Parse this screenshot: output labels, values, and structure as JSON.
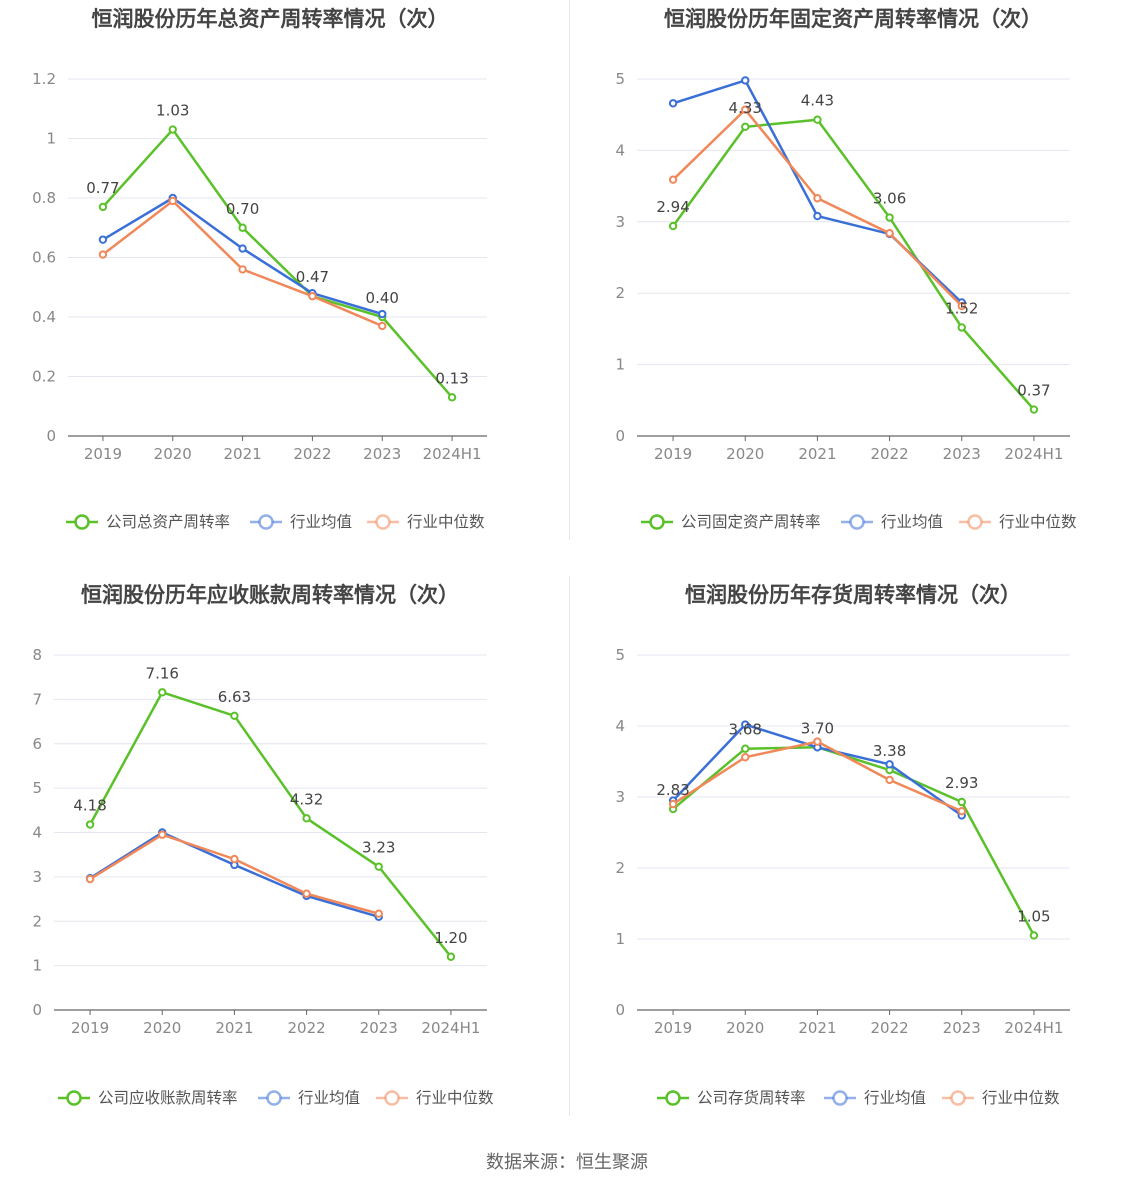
{
  "source_text": "数据来源：恒生聚源",
  "colors": {
    "company": "#5ac12a",
    "average": "#3a6fd8",
    "median": "#f0885a",
    "grid": "#e4e6f0",
    "axis": "#666666"
  },
  "chart_data": [
    {
      "type": "line",
      "title": "恒润股份历年总资产周转率情况（次）",
      "categories": [
        "2019",
        "2020",
        "2021",
        "2022",
        "2023",
        "2024H1"
      ],
      "ylim": [
        0,
        1.2
      ],
      "yticks": [
        0,
        0.2,
        0.4,
        0.6,
        0.8,
        1,
        1.2
      ],
      "ytick_labels": [
        "0",
        "0.2",
        "0.4",
        "0.6",
        "0.8",
        "1",
        "1.2"
      ],
      "grid": true,
      "legend": "bottom",
      "series": [
        {
          "name": "公司总资产周转率",
          "values": [
            0.77,
            1.03,
            0.7,
            0.47,
            0.4,
            0.13
          ],
          "data_labels": [
            "0.77",
            "1.03",
            "0.70",
            "0.47",
            "0.40",
            "0.13"
          ]
        },
        {
          "name": "行业均值",
          "values": [
            0.66,
            0.8,
            0.63,
            0.48,
            0.41,
            null
          ]
        },
        {
          "name": "行业中位数",
          "values": [
            0.61,
            0.79,
            0.56,
            0.47,
            0.37,
            null
          ]
        }
      ]
    },
    {
      "type": "line",
      "title": "恒润股份历年固定资产周转率情况（次）",
      "categories": [
        "2019",
        "2020",
        "2021",
        "2022",
        "2023",
        "2024H1"
      ],
      "ylim": [
        0,
        5
      ],
      "yticks": [
        0,
        1,
        2,
        3,
        4,
        5
      ],
      "ytick_labels": [
        "0",
        "1",
        "2",
        "3",
        "4",
        "5"
      ],
      "grid": true,
      "legend": "bottom",
      "series": [
        {
          "name": "公司固定资产周转率",
          "values": [
            2.94,
            4.33,
            4.43,
            3.06,
            1.52,
            0.37
          ],
          "data_labels": [
            "2.94",
            "4.33",
            "4.43",
            "3.06",
            "1.52",
            "0.37"
          ]
        },
        {
          "name": "行业均值",
          "values": [
            4.66,
            4.98,
            3.08,
            2.83,
            1.87,
            null
          ]
        },
        {
          "name": "行业中位数",
          "values": [
            3.59,
            4.57,
            3.33,
            2.84,
            1.82,
            null
          ]
        }
      ]
    },
    {
      "type": "line",
      "title": "恒润股份历年应收账款周转率情况（次）",
      "categories": [
        "2019",
        "2020",
        "2021",
        "2022",
        "2023",
        "2024H1"
      ],
      "ylim": [
        0,
        8
      ],
      "yticks": [
        0,
        1,
        2,
        3,
        4,
        5,
        6,
        7,
        8
      ],
      "ytick_labels": [
        "0",
        "1",
        "2",
        "3",
        "4",
        "5",
        "6",
        "7",
        "8"
      ],
      "grid": true,
      "legend": "bottom",
      "series": [
        {
          "name": "公司应收账款周转率",
          "values": [
            4.18,
            7.16,
            6.63,
            4.32,
            3.23,
            1.2
          ],
          "data_labels": [
            "4.18",
            "7.16",
            "6.63",
            "4.32",
            "3.23",
            "1.20"
          ]
        },
        {
          "name": "行业均值",
          "values": [
            2.97,
            4.0,
            3.27,
            2.57,
            2.1,
            null
          ]
        },
        {
          "name": "行业中位数",
          "values": [
            2.95,
            3.95,
            3.4,
            2.62,
            2.17,
            null
          ]
        }
      ]
    },
    {
      "type": "line",
      "title": "恒润股份历年存货周转率情况（次）",
      "categories": [
        "2019",
        "2020",
        "2021",
        "2022",
        "2023",
        "2024H1"
      ],
      "ylim": [
        0,
        5
      ],
      "yticks": [
        0,
        1,
        2,
        3,
        4,
        5
      ],
      "ytick_labels": [
        "0",
        "1",
        "2",
        "3",
        "4",
        "5"
      ],
      "grid": true,
      "legend": "bottom",
      "series": [
        {
          "name": "公司存货周转率",
          "values": [
            2.83,
            3.68,
            3.7,
            3.38,
            2.93,
            1.05
          ],
          "data_labels": [
            "2.83",
            "3.68",
            "3.70",
            "3.38",
            "2.93",
            "1.05"
          ]
        },
        {
          "name": "行业均值",
          "values": [
            2.95,
            4.02,
            3.7,
            3.46,
            2.74,
            null
          ]
        },
        {
          "name": "行业中位数",
          "values": [
            2.9,
            3.56,
            3.78,
            3.24,
            2.8,
            null
          ]
        }
      ]
    }
  ]
}
